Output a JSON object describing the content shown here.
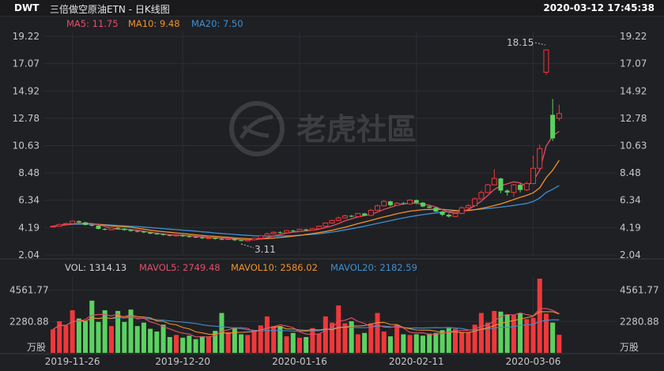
{
  "header": {
    "symbol": "DWT",
    "name": "三倍做空原油ETN - 日K线图",
    "datetime": "2020-03-12 17:45:38"
  },
  "watermark": {
    "text": "老虎社區"
  },
  "colors": {
    "up": "#f0383a",
    "down": "#5ad25f",
    "ma5": "#e0506a",
    "ma10": "#f0922b",
    "ma20": "#3f8fd0",
    "background": "#1f2024",
    "grid": "#2d2e33"
  },
  "price_legend": {
    "ma5": "MA5: 11.75",
    "ma10": "MA10: 9.48",
    "ma20": "MA20: 7.50"
  },
  "volume_legend": {
    "vol": "VOL: 1314.13",
    "mavol5": "MAVOL5: 2749.48",
    "mavol10": "MAVOL10: 2586.02",
    "mavol20": "MAVOL20: 2182.59"
  },
  "annotations": {
    "high": "18.15",
    "low": "3.11"
  },
  "chart_data": {
    "type": "candlestick",
    "price_axis": {
      "ticks": [
        "19.22",
        "17.07",
        "14.92",
        "12.78",
        "10.63",
        "8.48",
        "6.34",
        "4.19",
        "2.04"
      ],
      "range": [
        2.04,
        19.22
      ]
    },
    "volume_axis": {
      "ticks": [
        "4561.77",
        "2280.88"
      ],
      "unit": "万股",
      "range": [
        0,
        5400
      ]
    },
    "date_labels": [
      {
        "label": "2019-11-26",
        "index": 3
      },
      {
        "label": "2019-12-20",
        "index": 20
      },
      {
        "label": "2020-01-16",
        "index": 38
      },
      {
        "label": "2020-02-11",
        "index": 56
      },
      {
        "label": "2020-03-06",
        "index": 74
      }
    ],
    "candles": [
      [
        4.3,
        4.3,
        4.34,
        4.24
      ],
      [
        4.3,
        4.44,
        4.49,
        4.26
      ],
      [
        4.44,
        4.51,
        4.57,
        4.4
      ],
      [
        4.51,
        4.7,
        4.74,
        4.47
      ],
      [
        4.7,
        4.6,
        4.75,
        4.55
      ],
      [
        4.6,
        4.4,
        4.65,
        4.35
      ],
      [
        4.4,
        4.35,
        4.45,
        4.28
      ],
      [
        4.35,
        4.09,
        4.4,
        4.05
      ],
      [
        4.09,
        4.02,
        4.15,
        3.98
      ],
      [
        4.02,
        4.17,
        4.22,
        3.98
      ],
      [
        4.17,
        4.11,
        4.22,
        4.06
      ],
      [
        4.11,
        4.0,
        4.15,
        3.94
      ],
      [
        4.0,
        3.92,
        4.06,
        3.88
      ],
      [
        3.92,
        3.88,
        3.98,
        3.82
      ],
      [
        3.88,
        3.81,
        3.95,
        3.75
      ],
      [
        3.81,
        3.72,
        3.86,
        3.66
      ],
      [
        3.72,
        3.68,
        3.78,
        3.63
      ],
      [
        3.68,
        3.61,
        3.74,
        3.56
      ],
      [
        3.61,
        3.55,
        3.66,
        3.5
      ],
      [
        3.55,
        3.6,
        3.67,
        3.49
      ],
      [
        3.6,
        3.51,
        3.65,
        3.46
      ],
      [
        3.51,
        3.46,
        3.57,
        3.4
      ],
      [
        3.46,
        3.42,
        3.51,
        3.38
      ],
      [
        3.42,
        3.35,
        3.48,
        3.3
      ],
      [
        3.35,
        3.39,
        3.44,
        3.3
      ],
      [
        3.39,
        3.3,
        3.42,
        3.25
      ],
      [
        3.3,
        3.26,
        3.35,
        3.21
      ],
      [
        3.26,
        3.31,
        3.38,
        3.22
      ],
      [
        3.31,
        3.2,
        3.34,
        3.14
      ],
      [
        3.2,
        3.15,
        3.25,
        3.11
      ],
      [
        3.15,
        3.23,
        3.29,
        3.12
      ],
      [
        3.23,
        3.35,
        3.38,
        3.18
      ],
      [
        3.35,
        3.55,
        3.6,
        3.3
      ],
      [
        3.55,
        3.7,
        3.8,
        3.5
      ],
      [
        3.7,
        3.82,
        3.9,
        3.65
      ],
      [
        3.82,
        3.78,
        3.9,
        3.72
      ],
      [
        3.78,
        3.95,
        4.0,
        3.74
      ],
      [
        3.95,
        3.9,
        4.02,
        3.85
      ],
      [
        3.9,
        4.05,
        4.1,
        3.86
      ],
      [
        4.05,
        3.98,
        4.1,
        3.92
      ],
      [
        3.98,
        4.1,
        4.16,
        3.95
      ],
      [
        4.1,
        4.3,
        4.35,
        4.05
      ],
      [
        4.3,
        4.55,
        4.6,
        4.25
      ],
      [
        4.55,
        4.75,
        4.82,
        4.5
      ],
      [
        4.75,
        4.95,
        5.05,
        4.7
      ],
      [
        4.95,
        5.12,
        5.2,
        4.9
      ],
      [
        5.12,
        5.05,
        5.18,
        5.0
      ],
      [
        5.05,
        5.3,
        5.35,
        5.0
      ],
      [
        5.3,
        5.15,
        5.35,
        5.1
      ],
      [
        5.15,
        5.55,
        5.65,
        5.12
      ],
      [
        5.55,
        5.9,
        6.0,
        5.5
      ],
      [
        5.9,
        6.25,
        6.35,
        5.85
      ],
      [
        6.25,
        5.95,
        6.3,
        5.85
      ],
      [
        5.95,
        6.1,
        6.2,
        5.9
      ],
      [
        6.1,
        6.05,
        6.2,
        5.98
      ],
      [
        6.05,
        6.35,
        6.42,
        6.0
      ],
      [
        6.35,
        6.15,
        6.4,
        6.05
      ],
      [
        6.15,
        5.85,
        6.2,
        5.8
      ],
      [
        5.85,
        5.75,
        5.92,
        5.7
      ],
      [
        5.75,
        5.45,
        5.8,
        5.4
      ],
      [
        5.45,
        5.2,
        5.5,
        5.1
      ],
      [
        5.2,
        5.06,
        5.3,
        4.98
      ],
      [
        5.06,
        5.3,
        5.4,
        5.0
      ],
      [
        5.3,
        5.75,
        5.85,
        5.25
      ],
      [
        5.75,
        5.92,
        6.05,
        5.7
      ],
      [
        5.92,
        6.45,
        6.55,
        5.88
      ],
      [
        6.45,
        6.95,
        7.1,
        6.4
      ],
      [
        6.95,
        7.55,
        7.62,
        6.9
      ],
      [
        7.55,
        8.05,
        8.78,
        7.5
      ],
      [
        8.05,
        7.1,
        8.1,
        6.9
      ],
      [
        7.1,
        6.95,
        7.2,
        6.7
      ],
      [
        6.95,
        7.55,
        7.62,
        6.6
      ],
      [
        7.55,
        7.15,
        7.65,
        6.95
      ],
      [
        7.15,
        7.65,
        7.8,
        7.05
      ],
      [
        7.65,
        8.85,
        9.85,
        7.6
      ],
      [
        8.85,
        10.4,
        10.7,
        8.8
      ],
      [
        16.4,
        18.15,
        18.15,
        16.2
      ],
      [
        13.05,
        11.2,
        14.3,
        11.0
      ],
      [
        12.78,
        13.15,
        13.85,
        12.6
      ]
    ],
    "ma5": [
      4.3,
      4.37,
      4.42,
      4.49,
      4.51,
      4.53,
      4.51,
      4.43,
      4.29,
      4.13,
      4.07,
      4.06,
      4.04,
      3.98,
      3.9,
      3.83,
      3.76,
      3.69,
      3.63,
      3.61,
      3.58,
      3.55,
      3.51,
      3.47,
      3.43,
      3.4,
      3.36,
      3.32,
      3.29,
      3.25,
      3.23,
      3.25,
      3.3,
      3.4,
      3.53,
      3.64,
      3.76,
      3.83,
      3.88,
      3.93,
      3.99,
      4.06,
      4.19,
      4.33,
      4.51,
      4.73,
      4.88,
      5.03,
      5.13,
      5.23,
      5.41,
      5.62,
      5.78,
      5.95,
      6.05,
      6.12,
      6.1,
      6.02,
      5.95,
      5.81,
      5.6,
      5.39,
      5.34,
      5.43,
      5.61,
      5.91,
      6.27,
      6.72,
      7.19,
      7.48,
      7.63,
      7.79,
      7.7,
      7.43,
      7.85,
      8.7,
      10.6,
      11.4,
      11.75
    ],
    "ma10": [
      4.3,
      4.37,
      4.42,
      4.49,
      4.51,
      4.5,
      4.49,
      4.44,
      4.39,
      4.32,
      4.28,
      4.26,
      4.22,
      4.14,
      4.07,
      3.99,
      3.92,
      3.87,
      3.82,
      3.77,
      3.72,
      3.67,
      3.62,
      3.57,
      3.53,
      3.5,
      3.46,
      3.42,
      3.38,
      3.35,
      3.32,
      3.3,
      3.3,
      3.33,
      3.37,
      3.41,
      3.46,
      3.52,
      3.58,
      3.65,
      3.72,
      3.8,
      3.88,
      3.98,
      4.1,
      4.22,
      4.36,
      4.5,
      4.63,
      4.76,
      4.9,
      5.03,
      5.15,
      5.28,
      5.38,
      5.48,
      5.54,
      5.6,
      5.62,
      5.63,
      5.62,
      5.58,
      5.54,
      5.5,
      5.53,
      5.6,
      5.7,
      5.8,
      5.92,
      6.05,
      6.22,
      6.4,
      6.57,
      6.72,
      6.92,
      7.32,
      8.12,
      8.7,
      9.48
    ],
    "ma20": [
      4.3,
      4.35,
      4.4,
      4.45,
      4.46,
      4.46,
      4.45,
      4.44,
      4.42,
      4.39,
      4.36,
      4.33,
      4.3,
      4.27,
      4.23,
      4.19,
      4.15,
      4.11,
      4.07,
      4.03,
      3.99,
      3.95,
      3.91,
      3.86,
      3.82,
      3.77,
      3.73,
      3.69,
      3.65,
      3.61,
      3.58,
      3.55,
      3.53,
      3.52,
      3.52,
      3.53,
      3.54,
      3.56,
      3.59,
      3.62,
      3.66,
      3.71,
      3.77,
      3.84,
      3.92,
      4.01,
      4.1,
      4.2,
      4.3,
      4.41,
      4.52,
      4.63,
      4.74,
      4.85,
      4.95,
      5.05,
      5.13,
      5.21,
      5.28,
      5.34,
      5.4,
      5.45,
      5.49,
      5.53,
      5.56,
      5.6,
      5.64,
      5.69,
      5.74,
      5.8,
      5.86,
      5.93,
      6.01,
      6.09,
      6.24,
      6.52,
      6.95,
      7.2,
      7.5
    ],
    "volume": [
      1700,
      2300,
      2000,
      3100,
      2500,
      2300,
      3800,
      2250,
      3100,
      1950,
      3050,
      2250,
      3150,
      1950,
      2200,
      1750,
      1550,
      2050,
      1150,
      1300,
      1100,
      1250,
      1000,
      1200,
      1200,
      1600,
      2900,
      1500,
      1850,
      1350,
      1300,
      1650,
      2000,
      2650,
      1950,
      1950,
      1200,
      1450,
      1100,
      1150,
      1800,
      1400,
      2650,
      2200,
      3450,
      2150,
      2300,
      1350,
      1450,
      2150,
      2900,
      1550,
      1200,
      2050,
      1350,
      1300,
      1350,
      1250,
      1400,
      1450,
      1650,
      1800,
      1750,
      1500,
      1500,
      2050,
      2900,
      2200,
      3050,
      3000,
      2800,
      2750,
      2900,
      2450,
      2550,
      5400,
      2850,
      2200,
      1314
    ]
  }
}
